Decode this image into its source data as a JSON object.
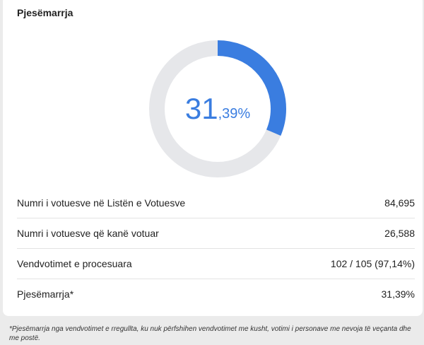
{
  "title": "Pjesëmarrja",
  "turnout": {
    "integer": "31",
    "decimal": ",39%",
    "value_percent": 31.39,
    "accent": "#3a7de0",
    "track": "#e6e7ea"
  },
  "rows": [
    {
      "label": "Numri i votuesve në Listën e Votuesve",
      "value": "84,695"
    },
    {
      "label": "Numri i votuesve që kanë votuar",
      "value": "26,588"
    },
    {
      "label": "Vendvotimet e procesuara",
      "value": "102 / 105 (97,14%)"
    },
    {
      "label": "Pjesëmarrja*",
      "value": "31,39%"
    }
  ],
  "footnote": "*Pjesëmarrja nga vendvotimet e rregullta, ku nuk përfshihen vendvotimet me kusht, votimi i personave me nevoja të veçanta dhe me postë."
}
